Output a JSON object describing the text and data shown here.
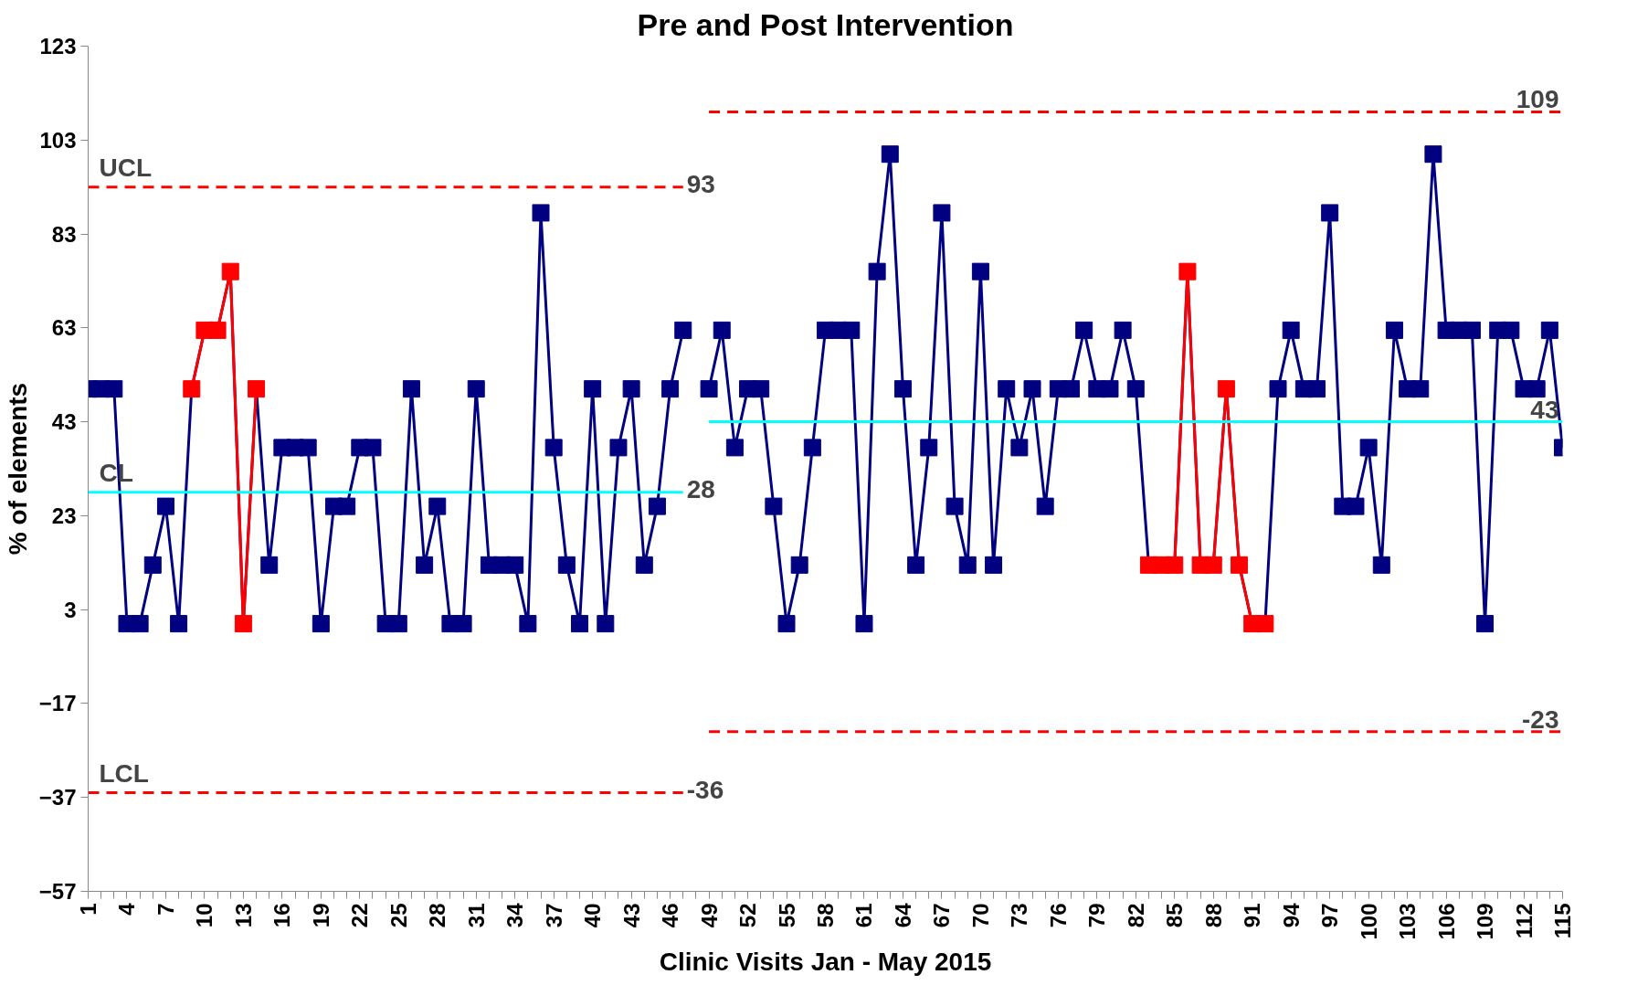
{
  "chart_data": {
    "type": "line",
    "title": "Pre and Post Intervention",
    "xlabel": "Clinic Visits Jan - May 2015",
    "ylabel": "% of elements",
    "x": [
      1,
      2,
      3,
      4,
      5,
      6,
      7,
      8,
      9,
      10,
      11,
      12,
      13,
      14,
      15,
      16,
      17,
      18,
      19,
      20,
      21,
      22,
      23,
      24,
      25,
      26,
      27,
      28,
      29,
      30,
      31,
      32,
      33,
      34,
      35,
      36,
      37,
      38,
      39,
      40,
      41,
      42,
      43,
      44,
      45,
      46,
      47,
      48,
      49,
      50,
      51,
      52,
      53,
      54,
      55,
      56,
      57,
      58,
      59,
      60,
      61,
      62,
      63,
      64,
      65,
      66,
      67,
      68,
      69,
      70,
      71,
      72,
      73,
      74,
      75,
      76,
      77,
      78,
      79,
      80,
      81,
      82,
      83,
      84,
      85,
      86,
      87,
      88,
      89,
      90,
      91,
      92,
      93,
      94,
      95,
      96,
      97,
      98,
      99,
      100,
      101,
      102,
      103,
      104,
      105,
      106,
      107,
      108,
      109,
      110,
      111,
      112,
      113,
      114,
      115
    ],
    "series": [
      {
        "color": "#000080",
        "marker": "square",
        "line_style": "solid",
        "values": [
          50,
          50,
          50,
          0,
          0,
          12.5,
          25,
          0,
          50,
          62.5,
          62.5,
          75,
          0,
          50,
          12.5,
          37.5,
          37.5,
          37.5,
          0,
          25,
          25,
          37.5,
          37.5,
          0,
          0,
          50,
          12.5,
          25,
          0,
          0,
          50,
          12.5,
          12.5,
          12.5,
          0,
          87.5,
          37.5,
          12.5,
          0,
          50,
          0,
          37.5,
          50,
          12.5,
          25,
          50,
          62.5,
          null,
          50,
          62.5,
          37.5,
          50,
          50,
          25,
          0,
          12.5,
          37.5,
          62.5,
          62.5,
          62.5,
          0,
          75,
          100,
          50,
          12.5,
          37.5,
          87.5,
          25,
          12.5,
          75,
          12.5,
          50,
          37.5,
          50,
          25,
          50,
          50,
          62.5,
          50,
          50,
          62.5,
          50,
          12.5,
          12.5,
          12.5,
          75,
          12.5,
          12.5,
          50,
          12.5,
          0,
          0,
          50,
          62.5,
          50,
          50,
          87.5,
          25,
          25,
          37.5,
          12.5,
          62.5,
          50,
          50,
          100,
          62.5,
          62.5,
          62.5,
          0,
          62.5,
          62.5,
          50,
          50,
          62.5,
          37.5
        ],
        "colors": [
          "#000080",
          "#000080",
          "#000080",
          "#000080",
          "#000080",
          "#000080",
          "#000080",
          "#000080",
          "#ff0000",
          "#ff0000",
          "#ff0000",
          "#ff0000",
          "#ff0000",
          "#ff0000",
          "#000080",
          "#000080",
          "#000080",
          "#000080",
          "#000080",
          "#000080",
          "#000080",
          "#000080",
          "#000080",
          "#000080",
          "#000080",
          "#000080",
          "#000080",
          "#000080",
          "#000080",
          "#000080",
          "#000080",
          "#000080",
          "#000080",
          "#000080",
          "#000080",
          "#000080",
          "#000080",
          "#000080",
          "#000080",
          "#000080",
          "#000080",
          "#000080",
          "#000080",
          "#000080",
          "#000080",
          "#000080",
          "#000080",
          "#000080",
          "#000080",
          "#000080",
          "#000080",
          "#000080",
          "#000080",
          "#000080",
          "#000080",
          "#000080",
          "#000080",
          "#000080",
          "#000080",
          "#000080",
          "#000080",
          "#000080",
          "#000080",
          "#000080",
          "#000080",
          "#000080",
          "#000080",
          "#000080",
          "#000080",
          "#000080",
          "#000080",
          "#000080",
          "#000080",
          "#000080",
          "#000080",
          "#000080",
          "#000080",
          "#000080",
          "#000080",
          "#000080",
          "#000080",
          "#000080",
          "#ff0000",
          "#ff0000",
          "#ff0000",
          "#ff0000",
          "#ff0000",
          "#ff0000",
          "#ff0000",
          "#ff0000",
          "#ff0000",
          "#ff0000",
          "#000080",
          "#000080",
          "#000080",
          "#000080",
          "#000080",
          "#000080",
          "#000080",
          "#000080",
          "#000080",
          "#000080",
          "#000080",
          "#000080",
          "#000080",
          "#000080",
          "#000080",
          "#000080",
          "#000080",
          "#000080",
          "#000080",
          "#000080",
          "#000080",
          "#000080",
          "#000080"
        ]
      },
      {
        "color": "#ff0000",
        "marker": "square",
        "line_style": "solid",
        "x": [
          9,
          10,
          11,
          12,
          13,
          14,
          null,
          83,
          84,
          85,
          86,
          87,
          88,
          89,
          90,
          91,
          92
        ],
        "values": [
          50,
          62.5,
          62.5,
          75,
          0,
          50,
          null,
          12.5,
          12.5,
          12.5,
          75,
          12.5,
          12.5,
          50,
          12.5,
          0,
          0
        ]
      },
      {
        "type": "line",
        "name": "UCL",
        "color": "#ff0000",
        "marker": "none",
        "line_style": "dashed",
        "x": [
          1,
          47
        ],
        "values": [
          93,
          93
        ],
        "value_labels": [
          null,
          "93"
        ]
      },
      {
        "type": "line",
        "name": "CL",
        "color": "#00ffff",
        "marker": "none",
        "line_style": "solid",
        "x": [
          1,
          47
        ],
        "values": [
          28,
          28
        ],
        "value_labels": [
          null,
          "28"
        ]
      },
      {
        "type": "line",
        "name": "LCL",
        "color": "#ff0000",
        "marker": "none",
        "line_style": "dashed",
        "x": [
          1,
          47
        ],
        "values": [
          -36,
          -36
        ],
        "value_labels": [
          null,
          "-36"
        ]
      },
      {
        "type": "line",
        "color": "#ff0000",
        "marker": "none",
        "line_style": "dashed",
        "x": [
          49,
          115
        ],
        "values": [
          109,
          109
        ],
        "value_labels": [
          null,
          "109"
        ]
      },
      {
        "type": "line",
        "color": "#00ffff",
        "marker": "none",
        "line_style": "solid",
        "x": [
          49,
          115
        ],
        "values": [
          43,
          43
        ],
        "value_labels": [
          null,
          "43"
        ]
      },
      {
        "type": "line",
        "color": "#ff0000",
        "marker": "none",
        "line_style": "dashed",
        "x": [
          49,
          115
        ],
        "values": [
          -23,
          -23
        ],
        "value_labels": [
          null,
          "-23"
        ]
      }
    ],
    "xlim": [
      1,
      115
    ],
    "ylim": [
      -57,
      123
    ],
    "yticks": [
      -57,
      -37,
      -17,
      3,
      23,
      43,
      63,
      83,
      103,
      123
    ],
    "xticks": [
      1,
      {
        "value": 2,
        "label": null
      },
      {
        "value": 3,
        "label": null
      },
      4,
      {
        "value": 5,
        "label": null
      },
      {
        "value": 6,
        "label": null
      },
      7,
      {
        "value": 8,
        "label": null
      },
      {
        "value": 9,
        "label": null
      },
      10,
      {
        "value": 11,
        "label": null
      },
      {
        "value": 12,
        "label": null
      },
      13,
      {
        "value": 14,
        "label": null
      },
      {
        "value": 15,
        "label": null
      },
      16,
      {
        "value": 17,
        "label": null
      },
      {
        "value": 18,
        "label": null
      },
      19,
      {
        "value": 20,
        "label": null
      },
      {
        "value": 21,
        "label": null
      },
      22,
      {
        "value": 23,
        "label": null
      },
      {
        "value": 24,
        "label": null
      },
      25,
      {
        "value": 26,
        "label": null
      },
      {
        "value": 27,
        "label": null
      },
      28,
      {
        "value": 29,
        "label": null
      },
      {
        "value": 30,
        "label": null
      },
      31,
      {
        "value": 32,
        "label": null
      },
      {
        "value": 33,
        "label": null
      },
      34,
      {
        "value": 35,
        "label": null
      },
      {
        "value": 36,
        "label": null
      },
      37,
      {
        "value": 38,
        "label": null
      },
      {
        "value": 39,
        "label": null
      },
      40,
      {
        "value": 41,
        "label": null
      },
      {
        "value": 42,
        "label": null
      },
      43,
      {
        "value": 44,
        "label": null
      },
      {
        "value": 45,
        "label": null
      },
      46,
      {
        "value": 47,
        "label": null
      },
      {
        "value": 48,
        "label": null
      },
      49,
      {
        "value": 50,
        "label": null
      },
      {
        "value": 51,
        "label": null
      },
      52,
      {
        "value": 53,
        "label": null
      },
      {
        "value": 54,
        "label": null
      },
      55,
      {
        "value": 56,
        "label": null
      },
      {
        "value": 57,
        "label": null
      },
      58,
      {
        "value": 59,
        "label": null
      },
      {
        "value": 60,
        "label": null
      },
      61,
      {
        "value": 62,
        "label": null
      },
      {
        "value": 63,
        "label": null
      },
      64,
      {
        "value": 65,
        "label": null
      },
      {
        "value": 66,
        "label": null
      },
      67,
      {
        "value": 68,
        "label": null
      },
      {
        "value": 69,
        "label": null
      },
      70,
      {
        "value": 71,
        "label": null
      },
      {
        "value": 72,
        "label": null
      },
      73,
      {
        "value": 74,
        "label": null
      },
      {
        "value": 75,
        "label": null
      },
      76,
      {
        "value": 77,
        "label": null
      },
      {
        "value": 78,
        "label": null
      },
      79,
      {
        "value": 80,
        "label": null
      },
      {
        "value": 81,
        "label": null
      },
      82,
      {
        "value": 83,
        "label": null
      },
      {
        "value": 84,
        "label": null
      },
      85,
      {
        "value": 86,
        "label": null
      },
      {
        "value": 87,
        "label": null
      },
      88,
      {
        "value": 89,
        "label": null
      },
      {
        "value": 90,
        "label": null
      },
      91,
      {
        "value": 92,
        "label": null
      },
      {
        "value": 93,
        "label": null
      },
      94,
      {
        "value": 95,
        "label": null
      },
      {
        "value": 96,
        "label": null
      },
      97,
      {
        "value": 98,
        "label": null
      },
      {
        "value": 99,
        "label": null
      },
      100,
      {
        "value": 101,
        "label": null
      },
      {
        "value": 102,
        "label": null
      },
      103,
      {
        "value": 104,
        "label": null
      },
      {
        "value": 105,
        "label": null
      },
      106,
      {
        "value": 107,
        "label": null
      },
      {
        "value": 108,
        "label": null
      },
      109,
      {
        "value": 110,
        "label": null
      },
      {
        "value": 111,
        "label": null
      },
      112,
      {
        "value": 113,
        "label": null
      },
      {
        "value": 114,
        "label": null
      },
      115
    ],
    "grid": false
  }
}
